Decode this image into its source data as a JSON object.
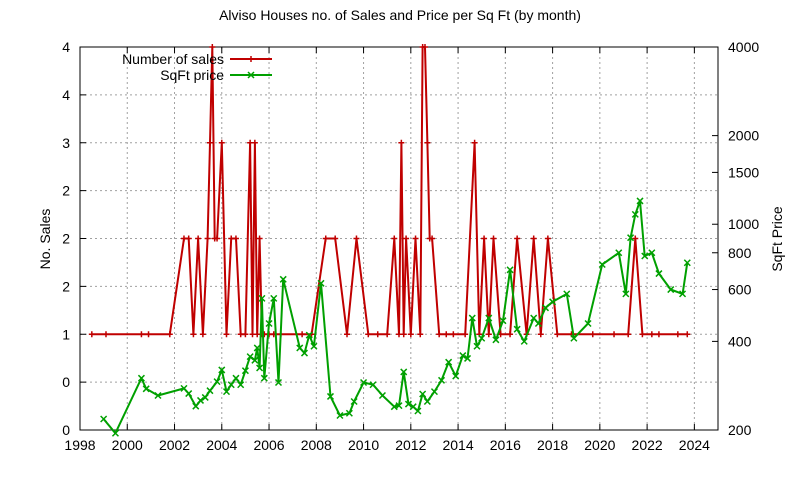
{
  "chart_data": {
    "type": "line",
    "title": "Alviso Houses no. of Sales and Price per Sq Ft (by month)",
    "xlabel": "",
    "ylabel": "No. Sales",
    "y2label": "SqFt Price",
    "xlim": [
      1998,
      2025
    ],
    "ylim": [
      0,
      4
    ],
    "y2lim": [
      200,
      4000
    ],
    "y2scale": "log",
    "grid": true,
    "legend_position": "top-left",
    "x_ticks": [
      1998,
      2000,
      2002,
      2004,
      2006,
      2008,
      2010,
      2012,
      2014,
      2016,
      2018,
      2020,
      2022,
      2024
    ],
    "y_ticks": [
      0,
      0.5,
      1,
      1.5,
      2,
      2.5,
      3,
      3.5,
      4
    ],
    "y_tick_labels": [
      "0",
      "0",
      "1",
      "2",
      "2",
      "2",
      "3",
      "4",
      "4"
    ],
    "y2_ticks": [
      200,
      400,
      600,
      800,
      1000,
      1500,
      2000,
      4000
    ],
    "y2_tick_labels": [
      "200",
      "400",
      "600",
      "800",
      "1000",
      "1500",
      "2000",
      "4000"
    ],
    "series": [
      {
        "name": "Number of sales",
        "color": "#c00000",
        "axis": "left",
        "marker": "plus",
        "x": [
          1998.5,
          1999.1,
          2000.6,
          2000.9,
          2001.8,
          2002.4,
          2002.6,
          2002.8,
          2003.0,
          2003.2,
          2003.4,
          2003.5,
          2003.6,
          2003.7,
          2003.8,
          2004.0,
          2004.2,
          2004.4,
          2004.6,
          2004.8,
          2005.0,
          2005.2,
          2005.3,
          2005.4,
          2005.5,
          2005.6,
          2005.7,
          2005.8,
          2006.0,
          2006.2,
          2006.5,
          2007.4,
          2007.8,
          2008.4,
          2008.8,
          2009.3,
          2009.7,
          2010.2,
          2010.6,
          2011.0,
          2011.3,
          2011.5,
          2011.6,
          2011.7,
          2011.8,
          2012.0,
          2012.2,
          2012.4,
          2012.5,
          2012.6,
          2012.7,
          2012.8,
          2012.9,
          2013.2,
          2013.5,
          2013.8,
          2014.3,
          2014.7,
          2014.9,
          2015.1,
          2015.3,
          2015.5,
          2015.8,
          2016.2,
          2016.5,
          2016.9,
          2017.2,
          2017.5,
          2017.8,
          2018.2,
          2018.8,
          2019.7,
          2020.6,
          2021.2,
          2021.5,
          2021.8,
          2022.2,
          2022.5,
          2023.3,
          2023.7
        ],
        "values": [
          1,
          1,
          1,
          1,
          1,
          2,
          2,
          1,
          2,
          1,
          2,
          3,
          4,
          2,
          2,
          3,
          1,
          2,
          2,
          1,
          1,
          3,
          1,
          3,
          1,
          2,
          1,
          1,
          1,
          1,
          1,
          1,
          1,
          2,
          2,
          1,
          2,
          1,
          1,
          1,
          2,
          1,
          3,
          1,
          2,
          1,
          2,
          1,
          4,
          4,
          3,
          2,
          2,
          1,
          1,
          1,
          1,
          3,
          1,
          2,
          1,
          2,
          1,
          1,
          2,
          1,
          2,
          1,
          2,
          1,
          1,
          1,
          1,
          1,
          2,
          1,
          1,
          1,
          1,
          1
        ]
      },
      {
        "name": "SqFt price",
        "color": "#00a000",
        "axis": "right",
        "marker": "cross",
        "x": [
          1999.0,
          1999.5,
          2000.6,
          2000.8,
          2001.3,
          2002.4,
          2002.6,
          2002.9,
          2003.1,
          2003.3,
          2003.5,
          2003.8,
          2004.0,
          2004.2,
          2004.4,
          2004.6,
          2004.8,
          2005.0,
          2005.2,
          2005.4,
          2005.5,
          2005.6,
          2005.7,
          2005.8,
          2006.0,
          2006.2,
          2006.4,
          2006.6,
          2007.3,
          2007.5,
          2007.7,
          2007.9,
          2008.2,
          2008.6,
          2009.0,
          2009.4,
          2009.6,
          2010.0,
          2010.4,
          2010.8,
          2011.3,
          2011.5,
          2011.7,
          2011.9,
          2012.1,
          2012.3,
          2012.5,
          2012.7,
          2013.0,
          2013.3,
          2013.6,
          2013.9,
          2014.2,
          2014.4,
          2014.6,
          2014.8,
          2015.0,
          2015.3,
          2015.6,
          2015.9,
          2016.2,
          2016.5,
          2016.8,
          2017.2,
          2017.4,
          2017.7,
          2018.0,
          2018.6,
          2018.9,
          2019.5,
          2020.1,
          2020.8,
          2021.1,
          2021.3,
          2021.5,
          2021.7,
          2021.9,
          2022.2,
          2022.5,
          2023.0,
          2023.5,
          2023.7
        ],
        "values": [
          218,
          195,
          300,
          276,
          262,
          277,
          266,
          241,
          252,
          258,
          272,
          292,
          320,
          270,
          285,
          300,
          285,
          318,
          355,
          345,
          380,
          325,
          560,
          300,
          460,
          560,
          290,
          650,
          380,
          365,
          420,
          385,
          630,
          260,
          224,
          228,
          250,
          290,
          285,
          262,
          240,
          242,
          315,
          245,
          240,
          232,
          265,
          250,
          270,
          295,
          340,
          305,
          358,
          350,
          480,
          385,
          410,
          480,
          405,
          470,
          700,
          440,
          400,
          480,
          460,
          520,
          545,
          580,
          410,
          460,
          730,
          800,
          580,
          900,
          1080,
          1200,
          780,
          800,
          680,
          600,
          580,
          740
        ]
      }
    ]
  }
}
